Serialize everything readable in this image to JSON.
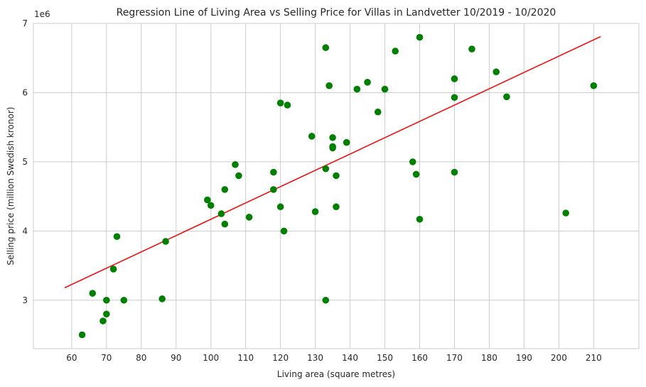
{
  "chart_data": {
    "type": "scatter",
    "title": "Regression Line of Living Area vs Selling Price for Villas in Landvetter 10/2019 - 10/2020",
    "xlabel": "Living area (square metres)",
    "ylabel": "Selling price (million Swedish kronor)",
    "y_offset_label": "1e6",
    "xlim": [
      49,
      223
    ],
    "ylim": [
      2.3,
      7.0
    ],
    "x_ticks": [
      60,
      70,
      80,
      90,
      100,
      110,
      120,
      130,
      140,
      150,
      160,
      170,
      180,
      190,
      200,
      210
    ],
    "y_ticks": [
      3,
      4,
      5,
      6,
      7
    ],
    "grid": true,
    "colors": {
      "points": "#008000",
      "line": "#ee1111",
      "grid": "#cccccc"
    },
    "series": [
      {
        "kind": "points",
        "x": [
          63,
          66,
          69,
          70,
          70,
          72,
          73,
          75,
          86,
          87,
          99,
          100,
          103,
          104,
          104,
          107,
          108,
          111,
          118,
          118,
          120,
          120,
          121,
          122,
          129,
          130,
          133,
          133,
          133,
          134,
          135,
          135,
          135,
          136,
          136,
          139,
          142,
          145,
          148,
          150,
          153,
          158,
          159,
          160,
          160,
          170,
          170,
          170,
          175,
          182,
          185,
          202,
          210
        ],
        "y": [
          2.5,
          3.1,
          2.7,
          2.8,
          3.0,
          3.45,
          3.92,
          3.0,
          3.02,
          3.85,
          4.45,
          4.37,
          4.25,
          4.1,
          4.6,
          4.96,
          4.8,
          4.2,
          4.85,
          4.6,
          4.35,
          5.85,
          4.0,
          5.82,
          5.37,
          4.28,
          3.0,
          4.9,
          6.65,
          6.1,
          5.35,
          5.22,
          5.2,
          4.8,
          4.35,
          5.28,
          6.05,
          6.15,
          5.72,
          6.05,
          6.6,
          5.0,
          4.82,
          4.17,
          6.8,
          4.85,
          5.93,
          6.2,
          6.63,
          6.3,
          5.94,
          4.26,
          6.1
        ]
      },
      {
        "kind": "regression-line",
        "x": [
          58,
          212
        ],
        "y": [
          3.18,
          6.81
        ]
      }
    ]
  }
}
